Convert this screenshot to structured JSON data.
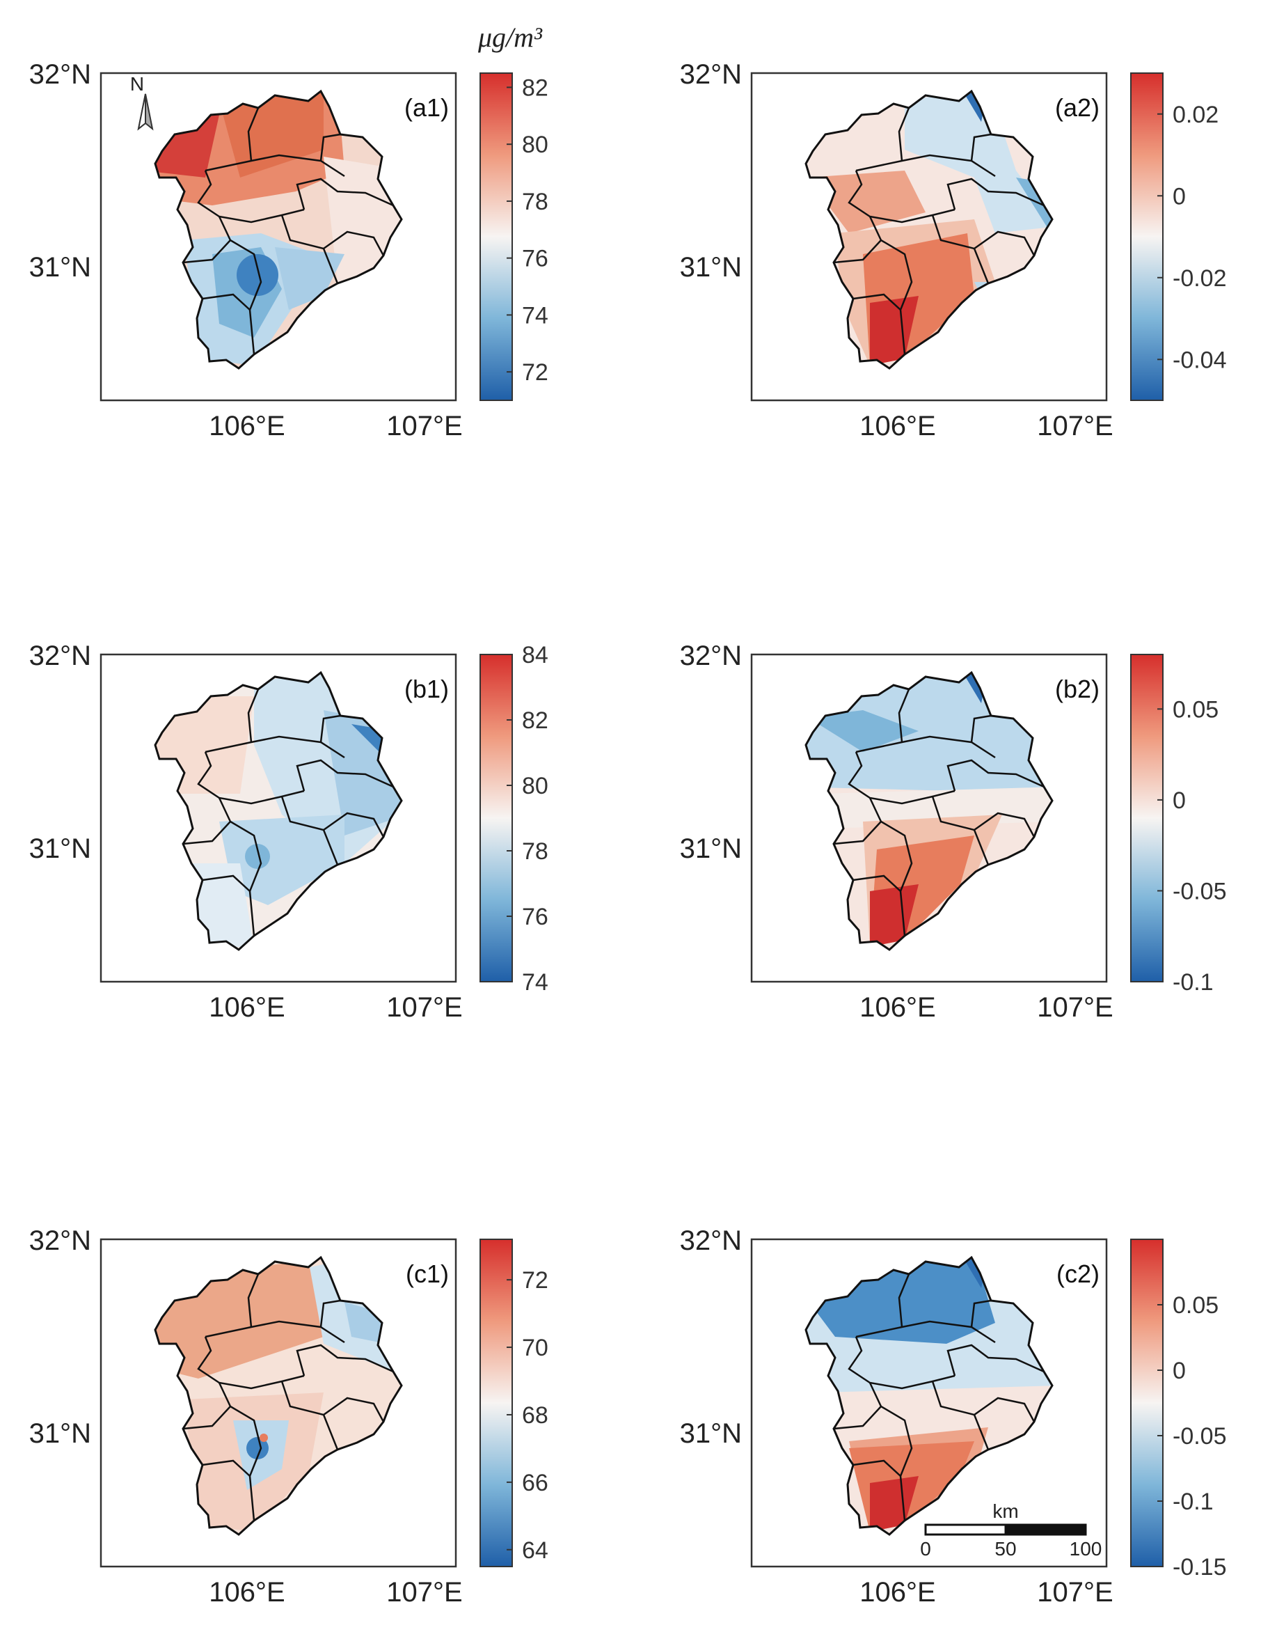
{
  "figure": {
    "unit": "μg/m³",
    "north_label": "N",
    "scale_bar": {
      "unit": "km",
      "ticks": [
        "0",
        "50",
        "100"
      ]
    },
    "colormap": {
      "low": "#1f5fa8",
      "mid": "#f7f4f2",
      "high": "#d62f2c"
    }
  },
  "panels": [
    {
      "id": "a1",
      "label": "(a1)",
      "lat_labels": [
        "32°N",
        "31°N"
      ],
      "lon_labels": [
        "106°E",
        "107°E"
      ],
      "colorbar": {
        "ticks": [
          "82",
          "80",
          "78",
          "76",
          "74",
          "72"
        ],
        "min": 71,
        "max": 82.5
      }
    },
    {
      "id": "a2",
      "label": "(a2)",
      "lat_labels": [
        "32°N",
        "31°N"
      ],
      "lon_labels": [
        "106°E",
        "107°E"
      ],
      "colorbar": {
        "ticks": [
          "0.02",
          "0",
          "-0.02",
          "-0.04"
        ],
        "min": -0.05,
        "max": 0.03
      }
    },
    {
      "id": "b1",
      "label": "(b1)",
      "lat_labels": [
        "32°N",
        "31°N"
      ],
      "lon_labels": [
        "106°E",
        "107°E"
      ],
      "colorbar": {
        "ticks": [
          "84",
          "82",
          "80",
          "78",
          "76",
          "74"
        ],
        "min": 74,
        "max": 84
      }
    },
    {
      "id": "b2",
      "label": "(b2)",
      "lat_labels": [
        "32°N",
        "31°N"
      ],
      "lon_labels": [
        "106°E",
        "107°E"
      ],
      "colorbar": {
        "ticks": [
          "0.05",
          "0",
          "-0.05",
          "-0.1"
        ],
        "min": -0.1,
        "max": 0.08
      }
    },
    {
      "id": "c1",
      "label": "(c1)",
      "lat_labels": [
        "32°N",
        "31°N"
      ],
      "lon_labels": [
        "106°E",
        "107°E"
      ],
      "colorbar": {
        "ticks": [
          "72",
          "70",
          "68",
          "66",
          "64"
        ],
        "min": 63.5,
        "max": 73.2
      }
    },
    {
      "id": "c2",
      "label": "(c2)",
      "lat_labels": [
        "32°N",
        "31°N"
      ],
      "lon_labels": [
        "106°E",
        "107°E"
      ],
      "colorbar": {
        "ticks": [
          "0.05",
          "0",
          "-0.05",
          "-0.1",
          "-0.15"
        ],
        "min": -0.15,
        "max": 0.1
      }
    }
  ]
}
